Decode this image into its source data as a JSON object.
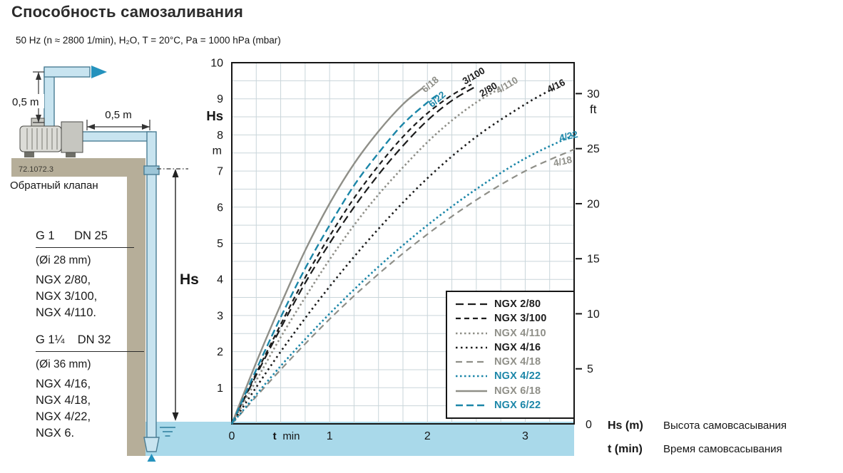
{
  "page": {
    "title": "Способность самозаливания",
    "subtitle": "50 Hz (n ≈ 2800 1/min),  H₂O, T = 20°C,  Pa = 1000 hPa (mbar)"
  },
  "palette": {
    "water": "#a9d9ea",
    "ground": "#b6ae99",
    "pipe_fill": "#c8e4f0",
    "pipe_fill_dark": "#9cc6d8",
    "pipe_stroke": "#4a7d94",
    "flow_arrow": "#2492bd",
    "frame": "#161616",
    "grid": "#c9d5da",
    "teal": "#1b86a8",
    "gray": "#8f8f88",
    "black": "#1c1c1c"
  },
  "diagram": {
    "dim_vertical": "0,5 m",
    "dim_horizontal": "0,5 m",
    "ref_code": "72.1072.3",
    "check_valve": "Обратный клапан",
    "hs": "Hs",
    "groups": [
      {
        "header": "G 1      DN 25",
        "bore": "(Øi 28 mm)",
        "models": [
          "NGX 2/80,",
          "NGX 3/100,",
          "NGX 4/110."
        ]
      },
      {
        "header": "G 1¼    DN 32",
        "bore": "(Øi 36 mm)",
        "models": [
          "NGX 4/16,",
          "NGX 4/18,",
          "NGX 4/22,",
          "NGX 6."
        ]
      }
    ]
  },
  "chart_data": {
    "type": "line",
    "title": "Способность самозаливания",
    "xlabel_symbol": "t",
    "xlabel_unit": "min",
    "ylabel": "Hs",
    "ylabel_unit": "m",
    "y2label": "ft",
    "y2_zero": "0",
    "xlim": [
      0,
      3.5
    ],
    "ylim": [
      0,
      10
    ],
    "x_ticks": [
      0,
      1,
      2,
      3
    ],
    "y_ticks": [
      1,
      2,
      3,
      4,
      5,
      6,
      7,
      8,
      9,
      10
    ],
    "y2_ticks_ft": [
      5,
      10,
      15,
      20,
      25,
      30
    ],
    "grid": {
      "x_step": 0.25,
      "y_step": 0.5,
      "color": "#c9d5da"
    },
    "series": [
      {
        "name": "NGX 2/80",
        "label": "2/80",
        "color": "#1c1c1c",
        "dash": "11,6",
        "width": 2.2,
        "x": [
          0,
          0.25,
          0.5,
          0.75,
          1,
          1.25,
          1.5,
          1.75,
          2,
          2.25,
          2.5
        ],
        "y": [
          0,
          1.35,
          2.65,
          3.9,
          5,
          6,
          6.9,
          7.7,
          8.4,
          8.95,
          9.35
        ],
        "label_at": [
          2.64,
          9.18
        ],
        "label_angle": -31
      },
      {
        "name": "NGX 3/100",
        "label": "3/100",
        "color": "#1c1c1c",
        "dash": "7,5",
        "width": 2.2,
        "x": [
          0,
          0.25,
          0.5,
          0.75,
          1,
          1.25,
          1.5,
          1.75,
          2,
          2.25,
          2.45
        ],
        "y": [
          0,
          1.4,
          2.75,
          4.05,
          5.2,
          6.25,
          7.15,
          7.95,
          8.6,
          9.1,
          9.4
        ],
        "label_at": [
          2.49,
          9.56
        ],
        "label_angle": -31
      },
      {
        "name": "NGX 4/110",
        "label": "4/110",
        "color": "#8f8f88",
        "dash": "2.5,3.5",
        "width": 2.6,
        "x": [
          0,
          0.25,
          0.5,
          0.75,
          1,
          1.25,
          1.5,
          1.75,
          2,
          2.25,
          2.5,
          2.75
        ],
        "y": [
          0,
          1.2,
          2.4,
          3.5,
          4.55,
          5.5,
          6.35,
          7.1,
          7.8,
          8.4,
          8.9,
          9.3
        ],
        "label_at": [
          2.83,
          9.3
        ],
        "label_angle": -31
      },
      {
        "name": "NGX 4/16",
        "label": "4/16",
        "color": "#1c1c1c",
        "dash": "2.5,4.5",
        "width": 2.6,
        "x": [
          0,
          0.5,
          1,
          1.5,
          2,
          2.5,
          3,
          3.3
        ],
        "y": [
          0,
          2,
          3.8,
          5.4,
          6.8,
          7.95,
          8.85,
          9.3
        ],
        "label_at": [
          3.33,
          9.28
        ],
        "label_angle": -27
      },
      {
        "name": "NGX 4/18",
        "label": "4/18",
        "color": "#8f8f88",
        "dash": "9,6",
        "width": 2.2,
        "x": [
          0,
          0.5,
          1,
          1.5,
          2,
          2.5,
          3,
          3.5
        ],
        "y": [
          0,
          1.5,
          2.9,
          4.15,
          5.25,
          6.2,
          7,
          7.6
        ],
        "label_at": [
          3.39,
          7.18
        ],
        "label_angle": -12
      },
      {
        "name": "NGX 4/22",
        "label": "4/22",
        "color": "#1b86a8",
        "dash": "2.5,3.5",
        "width": 2.6,
        "x": [
          0,
          0.5,
          1,
          1.5,
          2,
          2.5,
          3,
          3.5
        ],
        "y": [
          0,
          1.6,
          3.05,
          4.35,
          5.5,
          6.5,
          7.35,
          8
        ],
        "label_at": [
          3.45,
          7.88
        ],
        "label_angle": -13
      },
      {
        "name": "NGX 6/18",
        "label": "6/18",
        "color": "#8f8f88",
        "dash": "",
        "width": 2.4,
        "x": [
          0,
          0.25,
          0.5,
          0.75,
          1,
          1.25,
          1.5,
          1.75,
          1.95
        ],
        "y": [
          0,
          1.7,
          3.3,
          4.8,
          6.1,
          7.2,
          8.1,
          8.85,
          9.3
        ],
        "label_at": [
          2.05,
          9.33
        ],
        "label_angle": -41
      },
      {
        "name": "NGX 6/22",
        "label": "6/22",
        "color": "#1b86a8",
        "dash": "10,5",
        "width": 2.4,
        "x": [
          0,
          0.25,
          0.5,
          0.75,
          1,
          1.25,
          1.5,
          1.75,
          2,
          2.1
        ],
        "y": [
          0,
          1.5,
          2.95,
          4.3,
          5.5,
          6.6,
          7.5,
          8.3,
          8.9,
          9.1
        ],
        "label_at": [
          2.12,
          8.92
        ],
        "label_angle": -41
      }
    ],
    "legend": {
      "position": "inside-bottom-right",
      "entries": [
        "NGX 2/80",
        "NGX 3/100",
        "NGX 4/110",
        "NGX 4/16",
        "NGX 4/18",
        "NGX 4/22",
        "NGX 6/18",
        "NGX 6/22"
      ]
    },
    "captions": [
      {
        "term": "Hs (m)",
        "text": "Высота самовсасывания"
      },
      {
        "term": "t  (min)",
        "text": "Время самовсасывания"
      }
    ]
  }
}
